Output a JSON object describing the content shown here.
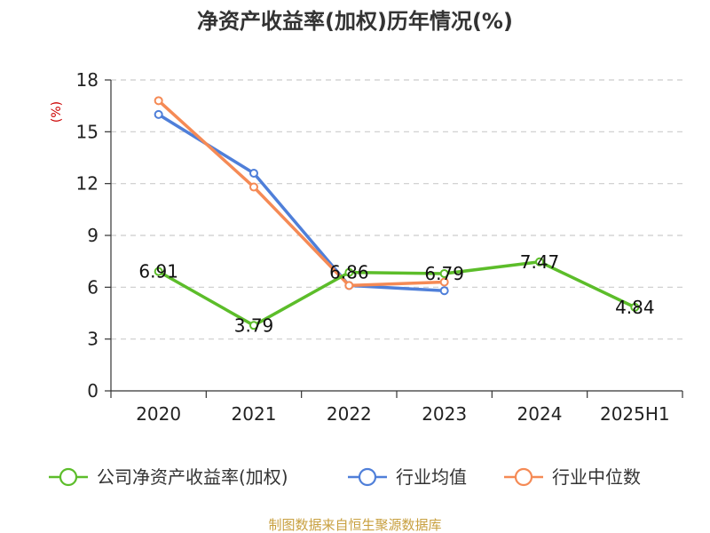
{
  "chart_data": {
    "type": "line",
    "title": "净资产收益率(加权)历年情况(%)",
    "ylabel": "(%)",
    "xlabel": "",
    "ylim": [
      0,
      18
    ],
    "yticks": [
      0,
      3,
      6,
      9,
      12,
      15,
      18
    ],
    "grid": true,
    "legend_position": "bottom",
    "categories": [
      "2020",
      "2021",
      "2022",
      "2023",
      "2024",
      "2025H1"
    ],
    "series": [
      {
        "name": "公司净资产收益率(加权)",
        "color": "#5cbd2a",
        "values": [
          6.91,
          3.79,
          6.86,
          6.79,
          7.47,
          4.84
        ],
        "labels": [
          "6.91",
          "3.79",
          "6.86",
          "6.79",
          "7.47",
          "4.84"
        ]
      },
      {
        "name": "行业均值",
        "color": "#4f7fd9",
        "values": [
          16.0,
          12.6,
          6.1,
          5.8,
          null,
          null
        ]
      },
      {
        "name": "行业中位数",
        "color": "#f58a55",
        "values": [
          16.8,
          11.8,
          6.1,
          6.3,
          null,
          null
        ]
      }
    ],
    "source": "制图数据来自恒生聚源数据库"
  },
  "colors": {
    "unit_label": "#cc0000",
    "source_text": "#c8a040",
    "grid": "#cccccc",
    "axis": "#333333"
  }
}
